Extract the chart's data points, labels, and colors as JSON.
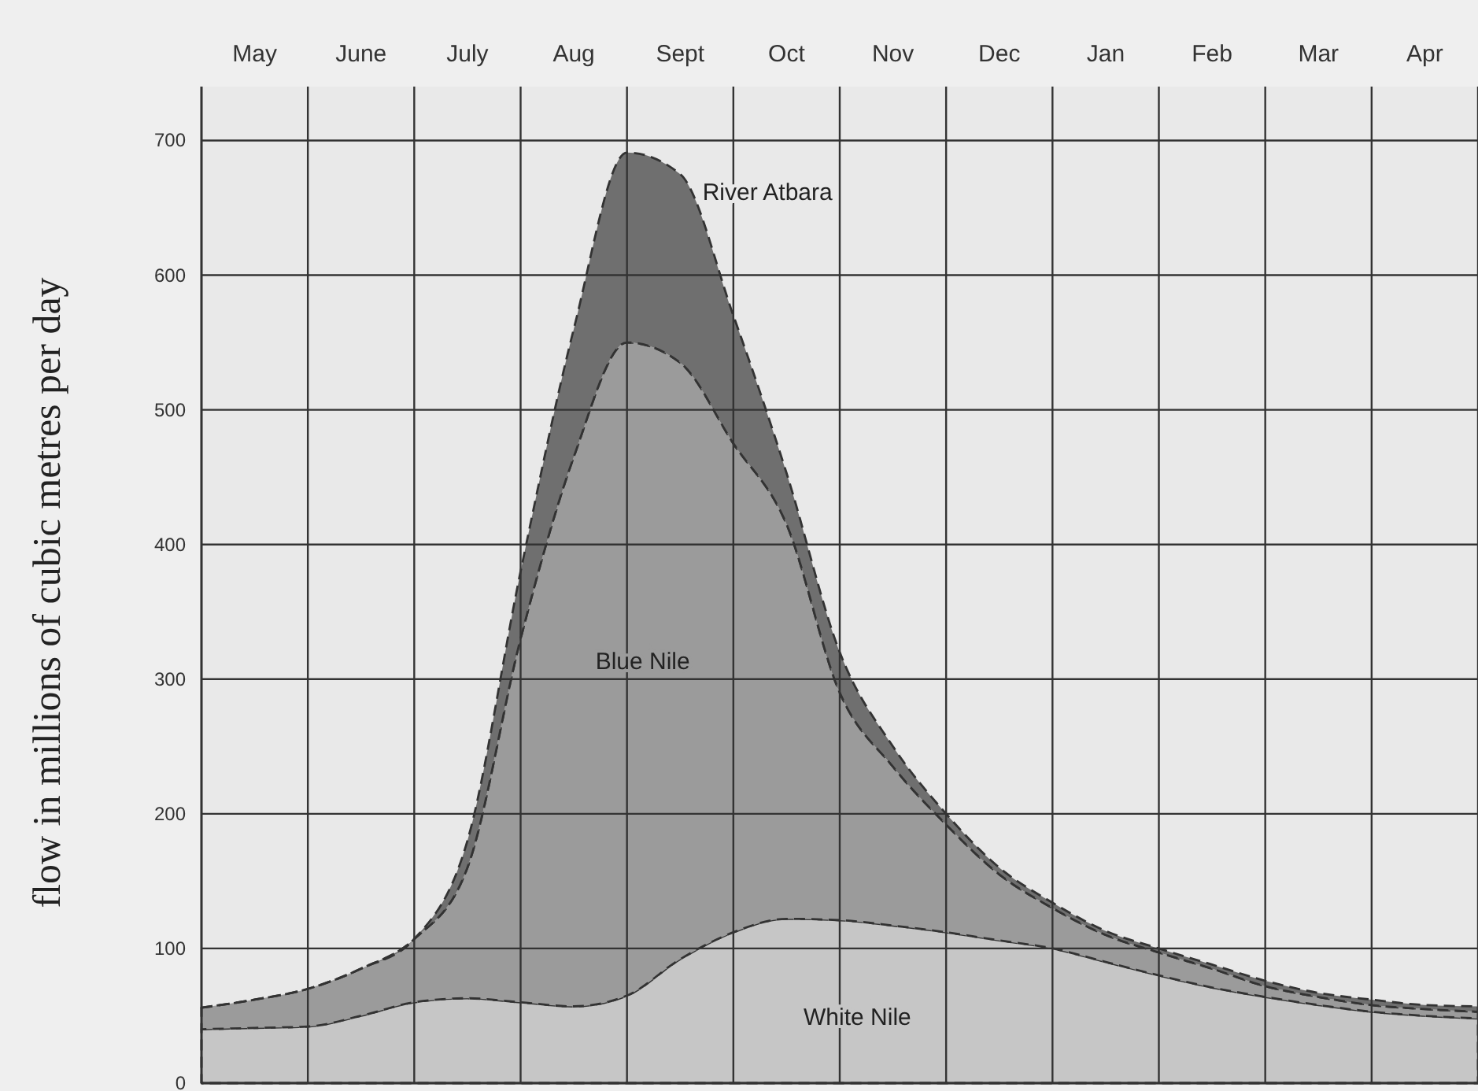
{
  "chart_data": {
    "type": "area",
    "stacked": true,
    "ylabel": "flow in millions of cubic metres per day",
    "categories": [
      null,
      "May",
      null,
      "June",
      null,
      "July",
      null,
      "Aug",
      null,
      "Sept",
      null,
      "Oct",
      null,
      "Nov",
      null,
      "Dec",
      null,
      "Jan",
      null,
      "Feb",
      null,
      "Mar",
      null,
      "Apr",
      null
    ],
    "series": [
      {
        "name": "White Nile",
        "color": "#c6c6c6",
        "values": [
          40,
          41,
          42,
          50,
          60,
          63,
          60,
          57,
          65,
          92,
          112,
          122,
          121,
          117,
          112,
          106,
          100,
          90,
          80,
          71,
          64,
          58,
          53,
          50,
          48
        ]
      },
      {
        "name": "Blue Nile",
        "color": "#9b9b9b",
        "values": [
          16,
          21,
          28,
          35,
          47,
          97,
          270,
          408,
          485,
          443,
          363,
          293,
          169,
          118,
          80,
          49,
          30,
          20,
          17,
          14,
          8,
          6,
          5,
          5,
          5
        ]
      },
      {
        "name": "River Atbara",
        "color": "#6f6f6f",
        "values": [
          0,
          0,
          0,
          0,
          0,
          20,
          50,
          95,
          141,
          140,
          95,
          38,
          30,
          15,
          8,
          5,
          4,
          3,
          3,
          3,
          4,
          3,
          4,
          3,
          4
        ]
      }
    ],
    "ylim": [
      0,
      740
    ],
    "yticks": [
      0,
      100,
      200,
      300,
      400,
      500,
      600,
      700
    ],
    "grid": true,
    "line_style": "dashed"
  }
}
